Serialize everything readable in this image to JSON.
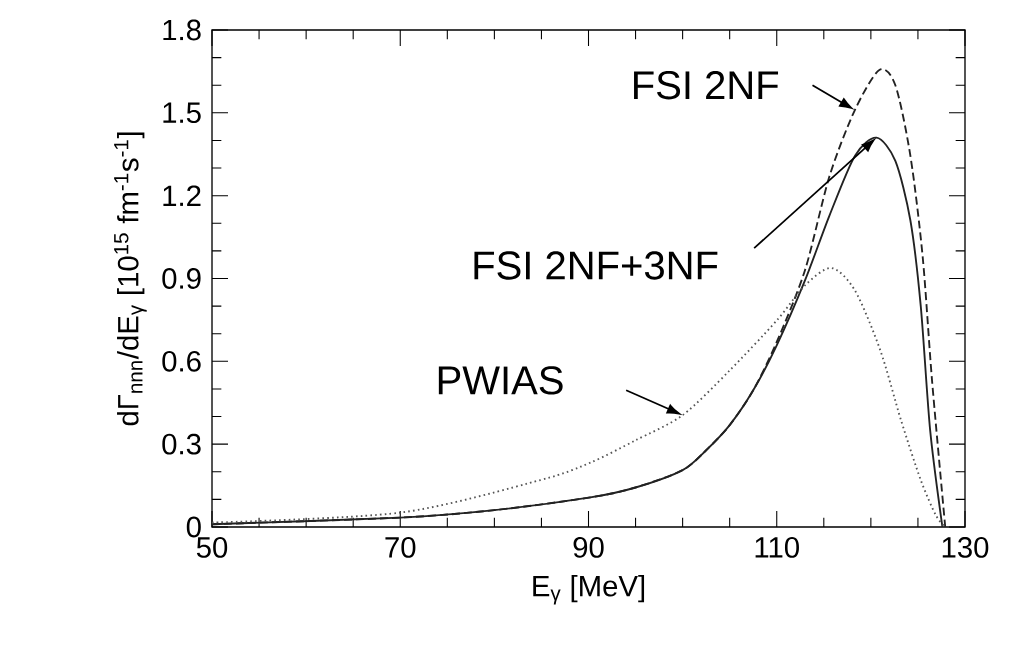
{
  "chart_data": {
    "type": "line",
    "xlabel": "E$_{γ}$ [MeV]",
    "ylabel": "dΓ$_{nnn}$/dE$_{γ}$ [10$^{15}$ fm$^{-1}$s$^{-1}$]",
    "xlim": [
      50,
      130
    ],
    "ylim": [
      0,
      1.8
    ],
    "xticks": [
      50,
      70,
      90,
      110,
      130
    ],
    "yticks": [
      0,
      0.3,
      0.6,
      0.9,
      1.2,
      1.5,
      1.8
    ],
    "marker": "none",
    "series": [
      {
        "name": "FSI 2NF",
        "color": "#222222",
        "line_style": "dashed",
        "x": [
          50,
          70,
          80,
          90.2,
          95,
          100,
          102.5,
          105,
          107.5,
          110,
          113,
          115.6,
          118.3,
          120.9,
          122.6,
          124.2,
          125.5,
          126.5,
          127.9
        ],
        "values": [
          0.01,
          0.034,
          0.061,
          0.107,
          0.143,
          0.206,
          0.278,
          0.369,
          0.495,
          0.67,
          0.93,
          1.27,
          1.51,
          1.655,
          1.6,
          1.344,
          0.98,
          0.53,
          0
        ]
      },
      {
        "name": "FSI 2NF+3NF",
        "color": "#222222",
        "line_style": "solid",
        "x": [
          50,
          70,
          80,
          90.2,
          95,
          100,
          102.5,
          105,
          107.5,
          110,
          113,
          115.6,
          118.3,
          120.6,
          122.6,
          124.2,
          125.3,
          126.3,
          127.6
        ],
        "values": [
          0.01,
          0.034,
          0.061,
          0.107,
          0.143,
          0.206,
          0.278,
          0.369,
          0.495,
          0.658,
          0.893,
          1.128,
          1.344,
          1.41,
          1.326,
          1.11,
          0.8,
          0.35,
          0
        ]
      },
      {
        "name": "PWIAS",
        "color": "#555555",
        "line_style": "dotted",
        "x": [
          50,
          70,
          84.9,
          90.2,
          95,
          100,
          105,
          110,
          113,
          115.8,
          118.3,
          121,
          123.2,
          125.3,
          126.9,
          127.9
        ],
        "values": [
          0.016,
          0.052,
          0.17,
          0.233,
          0.314,
          0.405,
          0.567,
          0.748,
          0.875,
          0.938,
          0.857,
          0.64,
          0.387,
          0.17,
          0.043,
          0
        ]
      }
    ]
  }
}
